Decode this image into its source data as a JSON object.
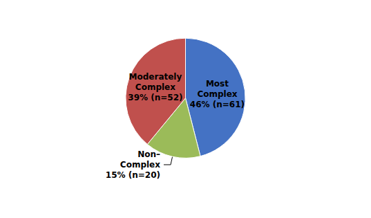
{
  "chart_data": {
    "type": "pie",
    "values": [
      46,
      15,
      39
    ],
    "value_labels": [
      "Most\nComplex\n46% (n=61)",
      "Non–\nComplex\n15% (n=20)",
      "Moderately\nComplex\n39% (n=52)"
    ],
    "colors": [
      "#4472C4",
      "#9BBB59",
      "#C0504D"
    ],
    "data_labels": true
  }
}
